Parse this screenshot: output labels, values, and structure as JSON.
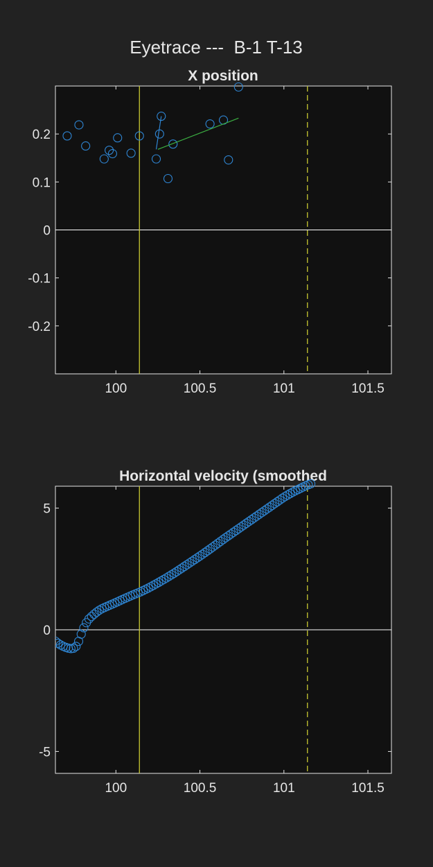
{
  "figure_title": "Eyetrace ---  B-1 T-13",
  "colors": {
    "background": "#222222",
    "axes_background": "#111111",
    "axes_foreground": "#e6e6e6",
    "markers": "#2f86d4",
    "green_line": "#3cb043",
    "event_lines": "#c8c832"
  },
  "chart_data": [
    {
      "type": "scatter",
      "title": "X position",
      "xlim": [
        99.64,
        101.64
      ],
      "ylim": [
        -0.3,
        0.3
      ],
      "xticks": [
        100,
        100.5,
        101,
        101.5
      ],
      "xtick_labels": [
        "100",
        "100.5",
        "101",
        "101.5"
      ],
      "yticks": [
        -0.2,
        -0.1,
        0,
        0.1,
        0.2
      ],
      "ytick_labels": [
        "-0.2",
        "-0.1",
        "0",
        "0.1",
        "0.2"
      ],
      "grid": false,
      "series": [
        {
          "marker": "circle",
          "points": [
            [
              99.71,
              0.196
            ],
            [
              99.78,
              0.219
            ],
            [
              99.82,
              0.175
            ],
            [
              99.93,
              0.148
            ],
            [
              99.96,
              0.166
            ],
            [
              99.98,
              0.159
            ],
            [
              100.01,
              0.192
            ],
            [
              100.09,
              0.16
            ],
            [
              100.14,
              0.196
            ],
            [
              100.24,
              0.148
            ],
            [
              100.26,
              0.2
            ],
            [
              100.27,
              0.237
            ],
            [
              100.31,
              0.107
            ],
            [
              100.34,
              0.179
            ],
            [
              100.56,
              0.221
            ],
            [
              100.64,
              0.229
            ],
            [
              100.67,
              0.146
            ],
            [
              100.73,
              0.298
            ]
          ]
        },
        {
          "marker": "none",
          "points": [
            [
              100.24,
              0.168
            ],
            [
              100.27,
              0.237
            ]
          ]
        },
        {
          "marker": "none",
          "color": "green",
          "points": [
            [
              100.25,
              0.168
            ],
            [
              100.73,
              0.233
            ]
          ]
        }
      ],
      "hlines": [
        0
      ],
      "vlines": [
        {
          "x": 100.14,
          "style": "solid"
        },
        {
          "x": 101.14,
          "style": "dashed"
        }
      ]
    },
    {
      "type": "scatter",
      "title": "Horizontal velocity (smoothed",
      "xlim": [
        99.64,
        101.64
      ],
      "ylim": [
        -5.9,
        5.9
      ],
      "xticks": [
        100,
        100.5,
        101,
        101.5
      ],
      "xtick_labels": [
        "100",
        "100.5",
        "101",
        "101.5"
      ],
      "yticks": [
        -5,
        0,
        5
      ],
      "ytick_labels": [
        "-5",
        "0",
        "5"
      ],
      "grid": false,
      "series": [
        {
          "marker": "circle",
          "curve_points": [
            [
              99.64,
              -0.47
            ],
            [
              99.66,
              -0.58
            ],
            [
              99.68,
              -0.66
            ],
            [
              99.7,
              -0.72
            ],
            [
              99.72,
              -0.76
            ],
            [
              99.74,
              -0.78
            ],
            [
              99.76,
              -0.72
            ],
            [
              99.78,
              -0.45
            ],
            [
              99.8,
              -0.05
            ],
            [
              99.82,
              0.25
            ],
            [
              99.84,
              0.45
            ],
            [
              99.86,
              0.58
            ],
            [
              99.88,
              0.7
            ],
            [
              99.9,
              0.8
            ],
            [
              99.92,
              0.88
            ],
            [
              99.95,
              0.97
            ],
            [
              100.0,
              1.12
            ],
            [
              100.05,
              1.28
            ],
            [
              100.1,
              1.43
            ],
            [
              100.15,
              1.57
            ],
            [
              100.2,
              1.74
            ],
            [
              100.25,
              1.93
            ],
            [
              100.3,
              2.13
            ],
            [
              100.35,
              2.34
            ],
            [
              100.4,
              2.57
            ],
            [
              100.45,
              2.8
            ],
            [
              100.5,
              3.03
            ],
            [
              100.55,
              3.27
            ],
            [
              100.6,
              3.52
            ],
            [
              100.65,
              3.77
            ],
            [
              100.7,
              4.01
            ],
            [
              100.75,
              4.25
            ],
            [
              100.8,
              4.49
            ],
            [
              100.85,
              4.73
            ],
            [
              100.9,
              4.97
            ],
            [
              100.95,
              5.21
            ],
            [
              101.0,
              5.45
            ],
            [
              101.05,
              5.65
            ],
            [
              101.1,
              5.82
            ],
            [
              101.13,
              5.92
            ],
            [
              101.16,
              6.0
            ]
          ],
          "point_count": 100
        }
      ],
      "hlines": [
        0
      ],
      "vlines": [
        {
          "x": 100.14,
          "style": "solid"
        },
        {
          "x": 101.14,
          "style": "dashed"
        }
      ]
    }
  ]
}
